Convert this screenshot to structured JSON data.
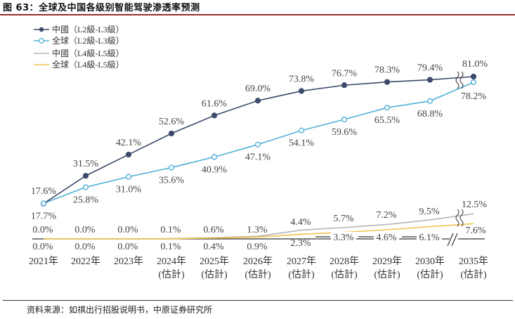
{
  "figure": {
    "title": "图 63：全球及中国各级别智能驾驶渗透率预测",
    "source": "资料来源：如祺出行招股说明书，中原证券研究所"
  },
  "chart_data": {
    "type": "line",
    "title": "全球及中国各级别智能驾驶渗透率预测",
    "categories": [
      "2021年",
      "2022年",
      "2023年",
      "2024年\n(估計)",
      "2025年\n(估計)",
      "2026年\n(估計)",
      "2027年\n(估計)",
      "2028年\n(估計)",
      "2029年\n(估計)",
      "2030年\n(估計)",
      "2035年\n(估計)"
    ],
    "unit": "%",
    "axis_break_between": [
      "2030年",
      "2035年"
    ],
    "series": [
      {
        "name": "中國（L2級-L3級）",
        "color": "#3d4a6b",
        "marker": "filled",
        "values": [
          17.6,
          31.5,
          42.1,
          52.6,
          61.6,
          69.0,
          73.8,
          76.7,
          78.3,
          79.4,
          81.0
        ],
        "labels": [
          "17.6%",
          "31.5%",
          "42.1%",
          "52.6%",
          "61.6%",
          "69.0%",
          "73.8%",
          "76.7%",
          "78.3%",
          "79.4%",
          "81.0%"
        ]
      },
      {
        "name": "全球（L2級-L3級）",
        "color": "#4fb0d8",
        "marker": "hollow",
        "values": [
          17.7,
          25.8,
          31.0,
          35.6,
          40.9,
          47.1,
          54.1,
          59.6,
          65.5,
          68.8,
          78.2
        ],
        "labels": [
          "17.7%",
          "25.8%",
          "31.0%",
          "35.6%",
          "40.9%",
          "47.1%",
          "54.1%",
          "59.6%",
          "65.5%",
          "68.8%",
          "78.2%"
        ]
      },
      {
        "name": "中國（L4級-L5級）",
        "color": "#b5b5b5",
        "marker": "none",
        "values": [
          0.0,
          0.0,
          0.0,
          0.1,
          0.6,
          1.3,
          4.4,
          5.7,
          7.2,
          9.5,
          12.5
        ],
        "labels": [
          "0.0%",
          "0.0%",
          "0.0%",
          "0.1%",
          "0.6%",
          "1.3%",
          "4.4%",
          "5.7%",
          "7.2%",
          "9.5%",
          "12.5%"
        ]
      },
      {
        "name": "全球（L4級-L5級）",
        "color": "#f2c14e",
        "marker": "none",
        "values": [
          0.0,
          0.0,
          0.0,
          0.1,
          0.4,
          0.9,
          2.3,
          3.3,
          4.6,
          6.1,
          7.6
        ],
        "labels": [
          "0.0%",
          "0.0%",
          "0.0%",
          "0.1%",
          "0.4%",
          "0.9%",
          "2.3%",
          "3.3%",
          "4.6%",
          "6.1%",
          "7.6%"
        ]
      }
    ]
  }
}
